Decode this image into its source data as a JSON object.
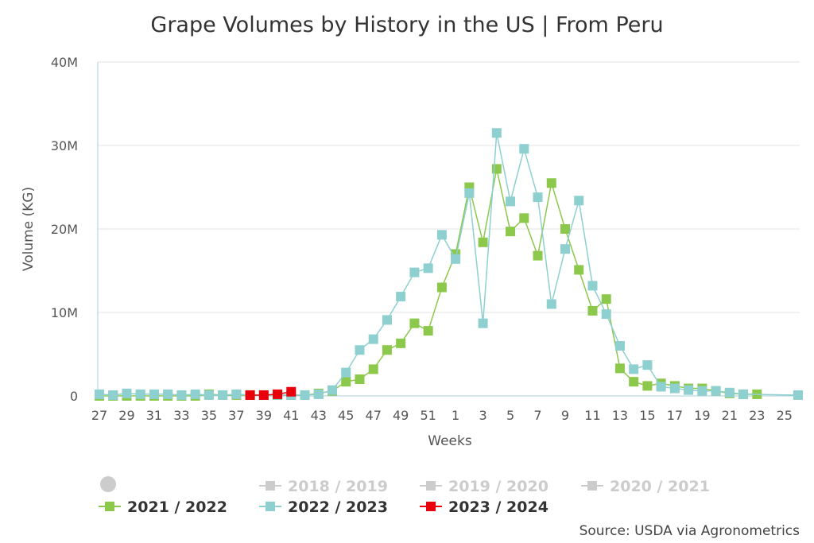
{
  "chart_data": {
    "type": "line",
    "title": "Grape Volumes by History in the US | From Peru",
    "xlabel": "Weeks",
    "ylabel": "Volume (KG)",
    "ylim": [
      0,
      40000000
    ],
    "y_ticks": [
      "0",
      "10M",
      "20M",
      "30M",
      "40M"
    ],
    "x_ticks": [
      "27",
      "29",
      "31",
      "33",
      "35",
      "37",
      "39",
      "41",
      "43",
      "45",
      "47",
      "49",
      "51",
      "1",
      "3",
      "5",
      "7",
      "9",
      "11",
      "13",
      "15",
      "17",
      "19",
      "21",
      "23",
      "25"
    ],
    "x_sequence": [
      "27",
      "28",
      "29",
      "30",
      "31",
      "32",
      "33",
      "34",
      "35",
      "36",
      "37",
      "38",
      "39",
      "40",
      "41",
      "42",
      "43",
      "44",
      "45",
      "46",
      "47",
      "48",
      "49",
      "50",
      "51",
      "52",
      "1",
      "2",
      "3",
      "4",
      "5",
      "6",
      "7",
      "8",
      "9",
      "10",
      "11",
      "12",
      "13",
      "14",
      "15",
      "16",
      "17",
      "18",
      "19",
      "20",
      "21",
      "22",
      "23",
      "24",
      "25",
      "26"
    ],
    "grid": true,
    "legend_position": "bottom",
    "source": "Source: USDA via Agronometrics",
    "series": [
      {
        "name": "2018 / 2019",
        "visible": false,
        "color": "#cccccc",
        "points": []
      },
      {
        "name": "2019 / 2020",
        "visible": false,
        "color": "#cccccc",
        "points": []
      },
      {
        "name": "2020 / 2021",
        "visible": false,
        "color": "#cccccc",
        "points": []
      },
      {
        "name": "2021 / 2022",
        "visible": true,
        "color": "#8cc84b",
        "points": [
          [
            "27",
            0
          ],
          [
            "28",
            0
          ],
          [
            "29",
            0
          ],
          [
            "30",
            0
          ],
          [
            "31",
            0
          ],
          [
            "32",
            0
          ],
          [
            "33",
            0
          ],
          [
            "34",
            0
          ],
          [
            "35",
            200000
          ],
          [
            "36",
            100000
          ],
          [
            "37",
            100000
          ],
          [
            "38",
            100000
          ],
          [
            "39",
            100000
          ],
          [
            "40",
            100000
          ],
          [
            "41",
            100000
          ],
          [
            "42",
            100000
          ],
          [
            "43",
            300000
          ],
          [
            "44",
            600000
          ],
          [
            "45",
            1700000
          ],
          [
            "46",
            2000000
          ],
          [
            "47",
            3200000
          ],
          [
            "48",
            5500000
          ],
          [
            "49",
            6300000
          ],
          [
            "50",
            8700000
          ],
          [
            "51",
            7800000
          ],
          [
            "52",
            13000000
          ],
          [
            "1",
            17000000
          ],
          [
            "2",
            25000000
          ],
          [
            "3",
            18400000
          ],
          [
            "4",
            27200000
          ],
          [
            "5",
            19700000
          ],
          [
            "6",
            21300000
          ],
          [
            "7",
            16800000
          ],
          [
            "8",
            25500000
          ],
          [
            "9",
            20000000
          ],
          [
            "10",
            15100000
          ],
          [
            "11",
            10200000
          ],
          [
            "12",
            11600000
          ],
          [
            "13",
            3300000
          ],
          [
            "14",
            1700000
          ],
          [
            "15",
            1200000
          ],
          [
            "16",
            1500000
          ],
          [
            "17",
            1200000
          ],
          [
            "18",
            900000
          ],
          [
            "19",
            900000
          ],
          [
            "20",
            600000
          ],
          [
            "21",
            300000
          ],
          [
            "22",
            200000
          ],
          [
            "23",
            200000
          ]
        ]
      },
      {
        "name": "2022 / 2023",
        "visible": true,
        "color": "#8ecfd0",
        "points": [
          [
            "27",
            200000
          ],
          [
            "28",
            100000
          ],
          [
            "29",
            300000
          ],
          [
            "30",
            200000
          ],
          [
            "31",
            200000
          ],
          [
            "32",
            200000
          ],
          [
            "33",
            100000
          ],
          [
            "34",
            200000
          ],
          [
            "35",
            100000
          ],
          [
            "36",
            100000
          ],
          [
            "37",
            200000
          ],
          [
            "38",
            100000
          ],
          [
            "39",
            100000
          ],
          [
            "40",
            100000
          ],
          [
            "41",
            100000
          ],
          [
            "42",
            100000
          ],
          [
            "43",
            200000
          ],
          [
            "44",
            700000
          ],
          [
            "45",
            2800000
          ],
          [
            "46",
            5500000
          ],
          [
            "47",
            6800000
          ],
          [
            "48",
            9100000
          ],
          [
            "49",
            11900000
          ],
          [
            "50",
            14800000
          ],
          [
            "51",
            15300000
          ],
          [
            "52",
            19300000
          ],
          [
            "1",
            16400000
          ],
          [
            "2",
            24300000
          ],
          [
            "3",
            8700000
          ],
          [
            "4",
            31500000
          ],
          [
            "5",
            23300000
          ],
          [
            "6",
            29600000
          ],
          [
            "7",
            23800000
          ],
          [
            "8",
            11000000
          ],
          [
            "9",
            17600000
          ],
          [
            "10",
            23400000
          ],
          [
            "11",
            13200000
          ],
          [
            "12",
            9800000
          ],
          [
            "13",
            6000000
          ],
          [
            "14",
            3200000
          ],
          [
            "15",
            3700000
          ],
          [
            "16",
            1100000
          ],
          [
            "17",
            900000
          ],
          [
            "18",
            700000
          ],
          [
            "19",
            600000
          ],
          [
            "20",
            600000
          ],
          [
            "21",
            400000
          ],
          [
            "22",
            200000
          ],
          [
            "26",
            100000
          ]
        ]
      },
      {
        "name": "2023 / 2024",
        "visible": true,
        "color": "#e8000b",
        "points": [
          [
            "38",
            100000
          ],
          [
            "39",
            100000
          ],
          [
            "40",
            200000
          ],
          [
            "41",
            500000
          ]
        ]
      }
    ]
  }
}
